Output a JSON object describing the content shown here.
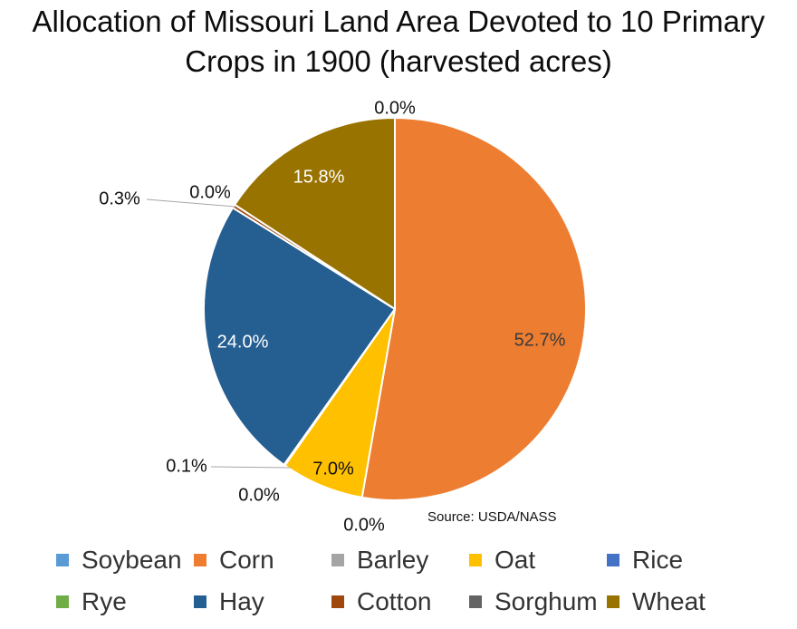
{
  "chart_data": {
    "type": "pie",
    "title_lines": [
      "Allocation of Missouri Land Area Devoted to 10 Primary",
      "Crops in 1900 (harvested acres)"
    ],
    "source": "Source: USDA/NASS",
    "legend_position": "bottom",
    "slices": [
      {
        "name": "Soybean",
        "value": 0.0,
        "label": "0.0%",
        "color": "#5b9bd5"
      },
      {
        "name": "Corn",
        "value": 52.7,
        "label": "52.7%",
        "color": "#ed7d31"
      },
      {
        "name": "Barley",
        "value": 0.0,
        "label": "0.0%",
        "color": "#a5a5a5"
      },
      {
        "name": "Oat",
        "value": 7.0,
        "label": "7.0%",
        "color": "#ffc000"
      },
      {
        "name": "Rice",
        "value": 0.0,
        "label": "0.0%",
        "color": "#4472c4"
      },
      {
        "name": "Rye",
        "value": 0.1,
        "label": "0.1%",
        "color": "#70ad47"
      },
      {
        "name": "Hay",
        "value": 24.0,
        "label": "24.0%",
        "color": "#255e91"
      },
      {
        "name": "Cotton",
        "value": 0.3,
        "label": "0.3%",
        "color": "#9e480e"
      },
      {
        "name": "Sorghum",
        "value": 0.0,
        "label": "0.0%",
        "color": "#636363"
      },
      {
        "name": "Wheat",
        "value": 15.8,
        "label": "15.8%",
        "color": "#997300"
      }
    ]
  }
}
